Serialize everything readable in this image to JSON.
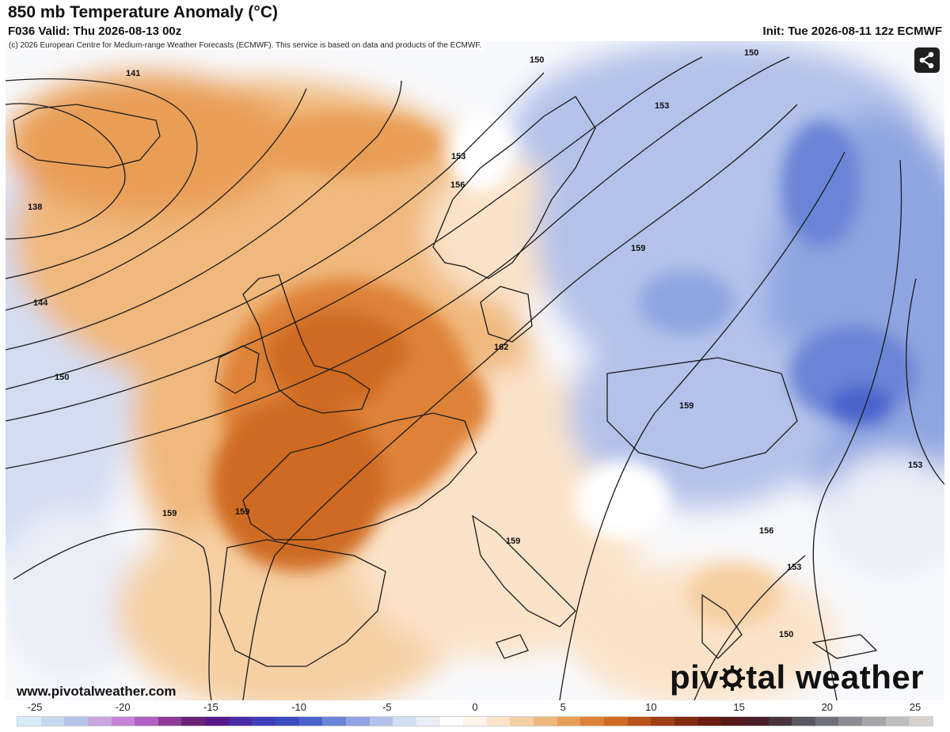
{
  "header": {
    "title": "850 mb Temperature Anomaly (°C)",
    "valid": "F036 Valid: Thu 2026-08-13 00z",
    "init": "Init: Tue 2026-08-11 12z ECMWF"
  },
  "copyright": "(c) 2026 European Centre for Medium-range Weather Forecasts (ECMWF). This service is based on data and products of the ECMWF.",
  "share_icon": "share-icon",
  "website": "www.pivotalweather.com",
  "brand": {
    "left": "piv",
    "right": "tal weather",
    "logo_icon": "gear-o-icon"
  },
  "contour_labels": {
    "c141": "141",
    "c138": "138",
    "c144": "144",
    "c150a": "150",
    "c150b": "150",
    "c150c": "150",
    "c153a": "153",
    "c153b": "153",
    "c153c": "153",
    "c153d": "153",
    "c156a": "156",
    "c156b": "156",
    "c159a": "159",
    "c159b": "159",
    "c159c": "159",
    "c159d": "159",
    "c159e": "159",
    "c162": "162",
    "c150d": "150"
  },
  "colorbar": {
    "ticks": [
      "-25",
      "-20",
      "-15",
      "-10",
      "-5",
      "0",
      "5",
      "10",
      "15",
      "20",
      "25"
    ],
    "colors": [
      "#d6ecf7",
      "#c5d8f0",
      "#b6c3ea",
      "#c8a6e0",
      "#c683d6",
      "#b160c4",
      "#8f3b96",
      "#6a2176",
      "#56188a",
      "#4a2aa6",
      "#3f3cbb",
      "#3b4cc2",
      "#4a63cc",
      "#6a84d6",
      "#8fa4e0",
      "#b3c2ea",
      "#d3ddf2",
      "#e9eef8",
      "#ffffff",
      "#fff4ea",
      "#fbe3c9",
      "#f6cfa3",
      "#f0b87c",
      "#e99e57",
      "#de8239",
      "#cf6a23",
      "#b9531a",
      "#9f3d15",
      "#832b12",
      "#6b1c13",
      "#561a1a",
      "#4a1f2a",
      "#47343d",
      "#575862",
      "#6f7178",
      "#8a8c92",
      "#a5a6aa",
      "#bfbfc1",
      "#d6d1cc"
    ]
  },
  "colors": {
    "warm_max": "#b9531a",
    "cold_max": "#3b4cc2",
    "contour": "#1a1a1a"
  }
}
